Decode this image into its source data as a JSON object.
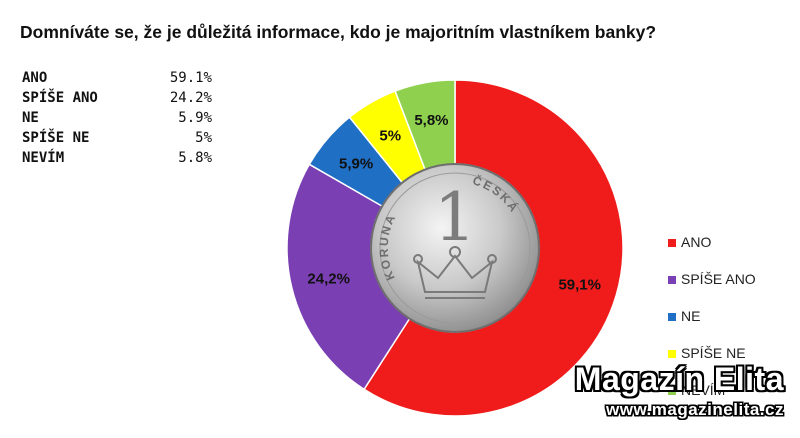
{
  "question": "Domníváte se, že je důležitá informace, kdo je majoritním vlastníkem banky?",
  "stats": [
    {
      "label": "ANO",
      "value": "59.1%"
    },
    {
      "label": "SPÍŠE ANO",
      "value": "24.2%"
    },
    {
      "label": "NE",
      "value": "5.9%"
    },
    {
      "label": "SPÍŠE NE",
      "value": "5%"
    },
    {
      "label": "NEVÍM",
      "value": "5.8%"
    }
  ],
  "chart_data": {
    "type": "pie",
    "variant": "doughnut",
    "title": "Domníváte se, že je důležitá informace, kdo je majoritním vlastníkem banky?",
    "categories": [
      "ANO",
      "SPÍŠE ANO",
      "NE",
      "SPÍŠE NE",
      "NEVÍM"
    ],
    "values": [
      59.1,
      24.2,
      5.9,
      5.0,
      5.8
    ],
    "data_labels": [
      "59,1%",
      "24,2%",
      "5,9%",
      "5%",
      "5,8%"
    ],
    "colors": [
      "#f01c1c",
      "#7b3fb4",
      "#1f6fc5",
      "#ffff00",
      "#8fd14f"
    ],
    "legend_position": "right",
    "center_image": "czech-one-koruna-coin",
    "coin_text": [
      "1",
      "ČESKÁ",
      "KORUNA"
    ]
  },
  "watermark": {
    "title": "Magazín Elita",
    "url": "www.magazinelita.cz"
  }
}
